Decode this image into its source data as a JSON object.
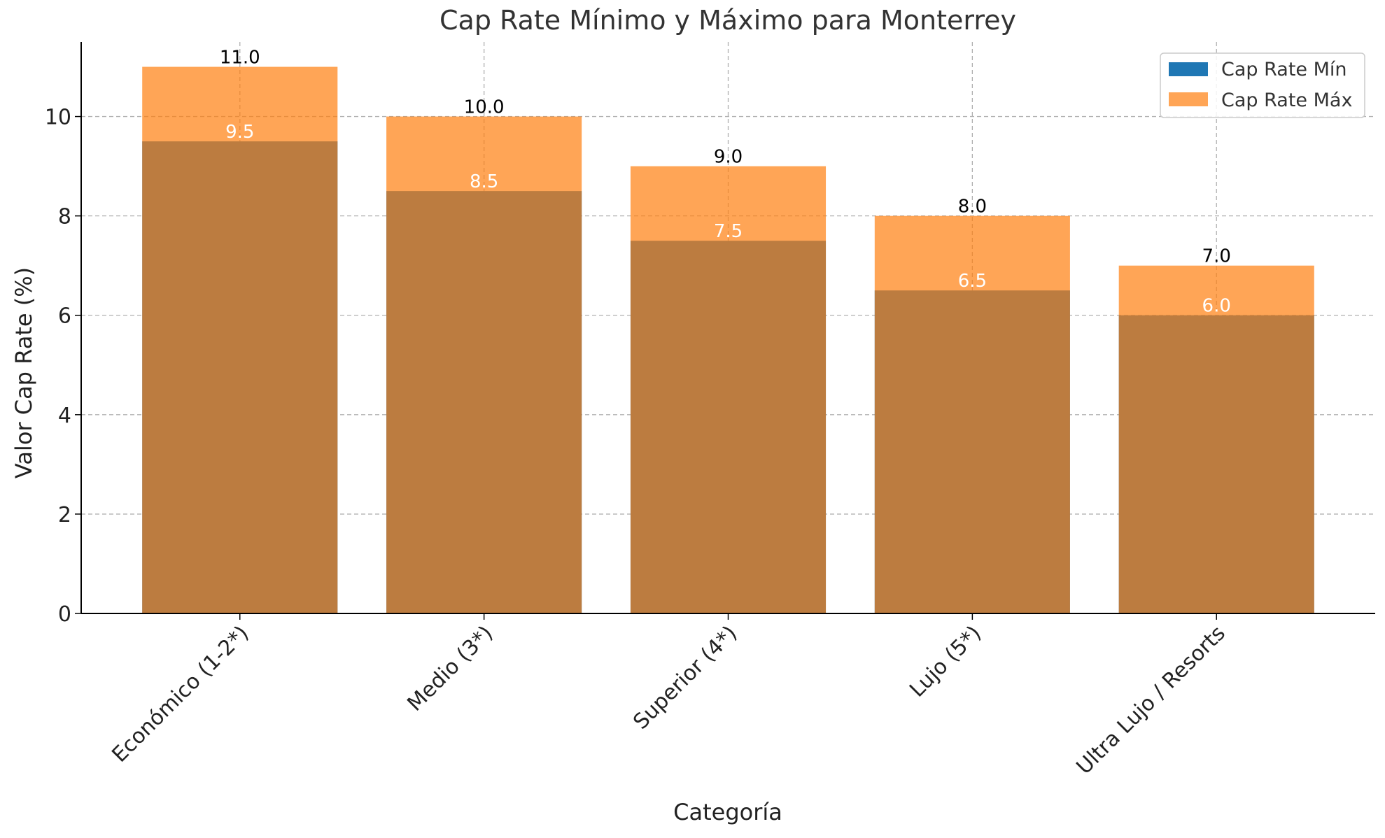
{
  "chart_data": {
    "type": "bar",
    "title": "Cap Rate Mínimo y Máximo para Monterrey",
    "xlabel": "Categoría",
    "ylabel": "Valor Cap Rate (%)",
    "categories": [
      "Económico (1-2*)",
      "Medio (3*)",
      "Superior (4*)",
      "Lujo (5*)",
      "Ultra Lujo / Resorts"
    ],
    "series": [
      {
        "name": "Cap Rate Mín",
        "values": [
          9.5,
          8.5,
          7.5,
          6.5,
          6.0
        ],
        "color": "#1f77b4",
        "labels": [
          "9.5",
          "8.5",
          "7.5",
          "6.5",
          "6.0"
        ]
      },
      {
        "name": "Cap Rate Máx",
        "values": [
          11.0,
          10.0,
          9.0,
          8.0,
          7.0
        ],
        "color": "#ff7f0e",
        "opacity": 0.7,
        "labels": [
          "11.0",
          "10.0",
          "9.0",
          "8.0",
          "7.0"
        ]
      }
    ],
    "ylim": [
      0,
      11.5
    ],
    "yticks": [
      "0",
      "2",
      "4",
      "6",
      "8",
      "10"
    ],
    "grid": true,
    "legend_position": "top-right",
    "overlap": true
  }
}
